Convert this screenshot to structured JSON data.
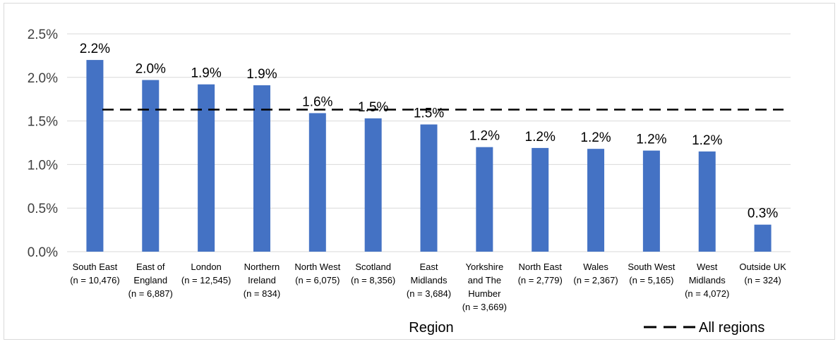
{
  "chart_data": {
    "type": "bar",
    "title": "",
    "xlabel": "Region",
    "ylabel": "",
    "ylim": [
      0,
      0.025
    ],
    "yticks": [
      "0.0%",
      "0.5%",
      "1.0%",
      "1.5%",
      "2.0%",
      "2.5%"
    ],
    "grid": "horizontal",
    "legend_position": "bottom-right",
    "bar_color": "#4472C4",
    "categories": [
      [
        "South East",
        "(n = 10,476)"
      ],
      [
        "East of",
        "England",
        "(n = 6,887)"
      ],
      [
        "London",
        "(n = 12,545)"
      ],
      [
        "Northern",
        "Ireland",
        "(n = 834)"
      ],
      [
        "North West",
        "(n = 6,075)"
      ],
      [
        "Scotland",
        "(n = 8,356)"
      ],
      [
        "East",
        "Midlands",
        "(n = 3,684)"
      ],
      [
        "Yorkshire",
        "and The",
        "Humber",
        "(n = 3,669)"
      ],
      [
        "North East",
        "(n = 2,779)"
      ],
      [
        "Wales",
        "(n = 2,367)"
      ],
      [
        "South West",
        "(n = 5,165)"
      ],
      [
        "West",
        "Midlands",
        "(n = 4,072)"
      ],
      [
        "Outside UK",
        "(n = 324)"
      ]
    ],
    "series": [
      {
        "values": [
          0.022,
          0.0197,
          0.0192,
          0.0191,
          0.0159,
          0.0153,
          0.0146,
          0.012,
          0.0119,
          0.0118,
          0.0116,
          0.0115,
          0.0031
        ],
        "labels": [
          "2.2%",
          "2.0%",
          "1.9%",
          "1.9%",
          "1.6%",
          "1.5%",
          "1.5%",
          "1.2%",
          "1.2%",
          "1.2%",
          "1.2%",
          "1.2%",
          "0.3%"
        ]
      }
    ],
    "reference_line": {
      "name": "All regions",
      "value": 0.0163,
      "style": "dashed",
      "color": "#000000"
    }
  }
}
